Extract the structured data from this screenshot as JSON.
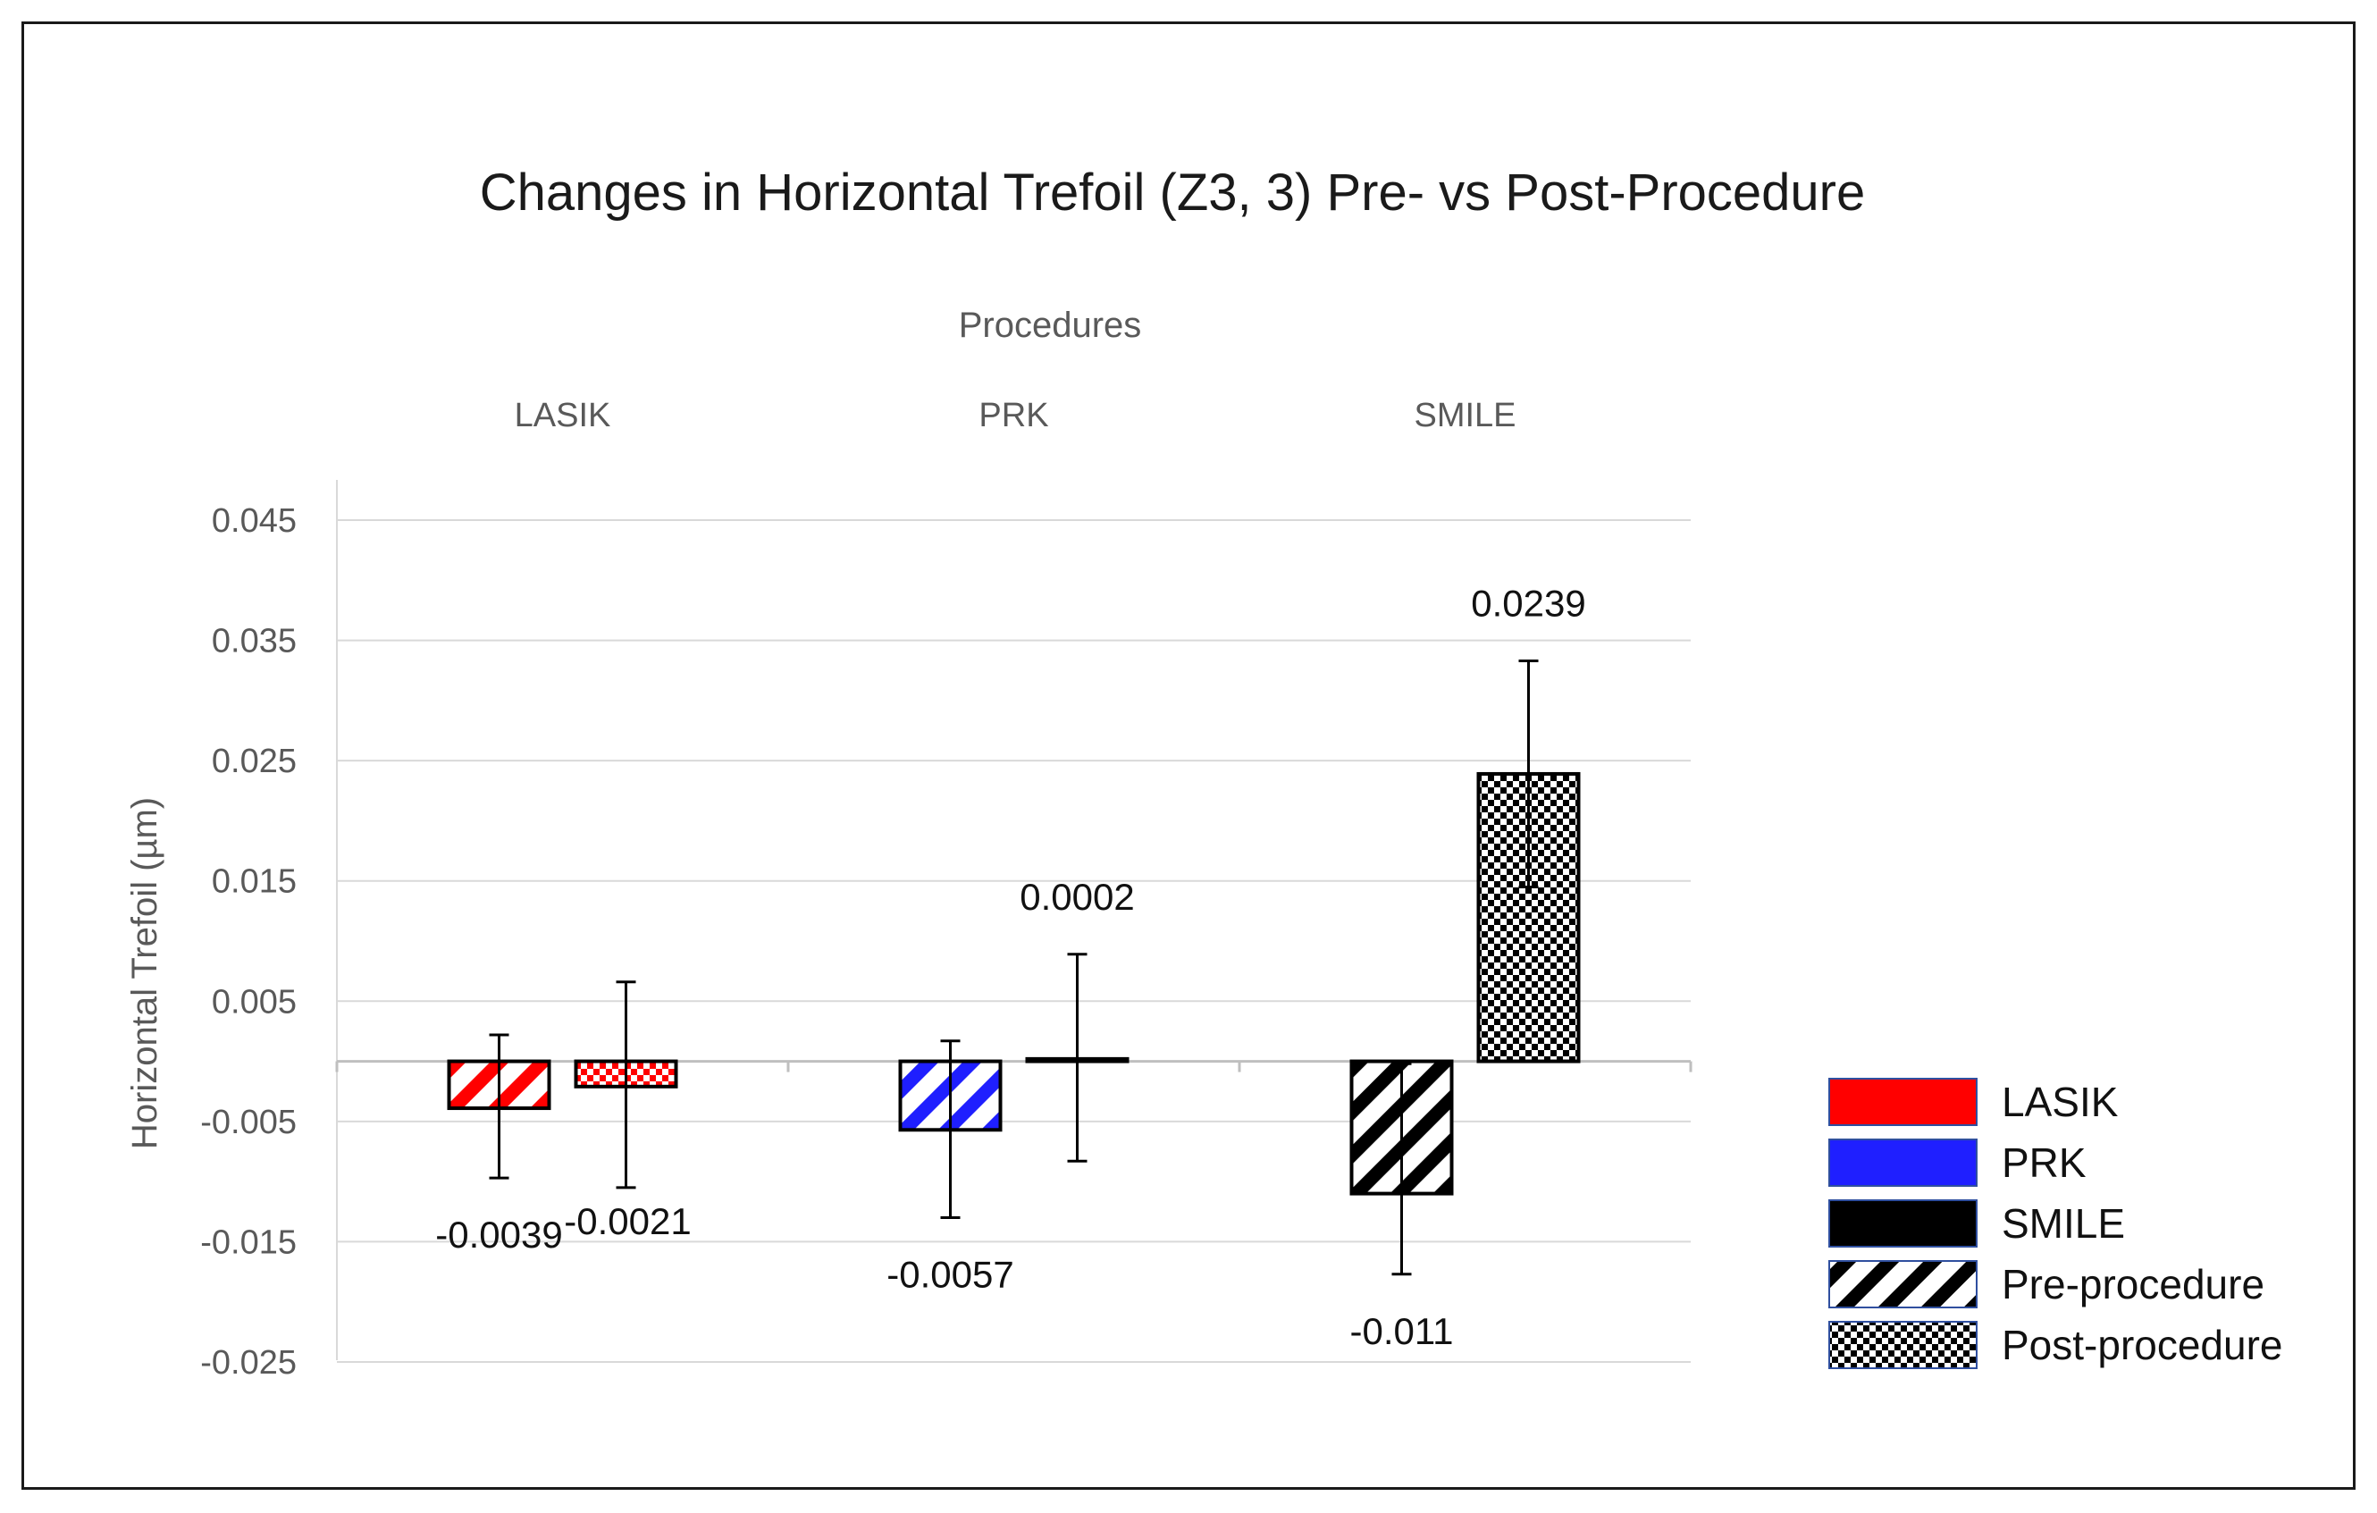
{
  "chart_data": {
    "type": "bar",
    "title": "Changes in Horizontal Trefoil (Z3, 3) Pre- vs Post-Procedure",
    "xlabel": "Procedures",
    "ylabel": "Horizontal Trefoil (µm)",
    "categories": [
      "LASIK",
      "PRK",
      "SMILE"
    ],
    "ylim": [
      -0.025,
      0.045
    ],
    "yticks": [
      "0.045",
      "0.035",
      "0.025",
      "0.015",
      "0.005",
      "-0.005",
      "-0.015",
      "-0.025"
    ],
    "x_axis_position": "top",
    "grid": true,
    "legend_position": "right",
    "series": [
      {
        "name": "Pre-procedure",
        "pattern": "stripes",
        "values": [
          -0.0039,
          -0.0057,
          -0.011
        ],
        "labels": [
          "-0.0039",
          "-0.0057",
          "-0.011"
        ],
        "error_low": [
          -0.0097,
          -0.013,
          -0.0177
        ],
        "error_high": [
          0.0022,
          0.0017,
          -0.0002
        ]
      },
      {
        "name": "Post-procedure",
        "pattern": "checker",
        "values": [
          -0.0021,
          0.0002,
          0.0239
        ],
        "labels": [
          "-0.0021",
          "0.0002",
          "0.0239"
        ],
        "error_low": [
          -0.0105,
          -0.0083,
          0.0145
        ],
        "error_high": [
          0.0066,
          0.0089,
          0.0333
        ]
      }
    ],
    "category_colors": {
      "LASIK": "#ff0000",
      "PRK": "#1f1fff",
      "SMILE": "#000000"
    },
    "legend": [
      {
        "label": "LASIK",
        "kind": "solid",
        "color": "#ff0000"
      },
      {
        "label": "PRK",
        "kind": "solid",
        "color": "#1f1fff"
      },
      {
        "label": "SMILE",
        "kind": "solid",
        "color": "#000000"
      },
      {
        "label": "Pre-procedure",
        "kind": "stripes",
        "color": "#000000"
      },
      {
        "label": "Post-procedure",
        "kind": "checker",
        "color": "#000000"
      }
    ]
  }
}
